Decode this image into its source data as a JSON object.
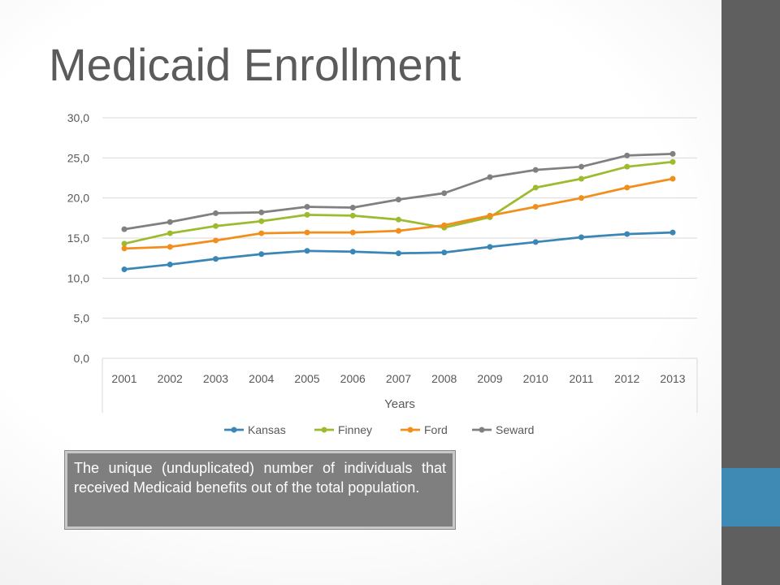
{
  "slide": {
    "title": "Medicaid Enrollment",
    "caption": "The unique (unduplicated) number of individuals that received Medicaid benefits out of the total population."
  },
  "colors": {
    "right_bar": "#5f5f5f",
    "right_accent": "#3f8ab5",
    "caption_bg": "#7f7f7f"
  },
  "chart_data": {
    "type": "line",
    "title": "",
    "xlabel": "Years",
    "ylabel": "",
    "ylim": [
      0,
      30
    ],
    "y_ticks": [
      "0,0",
      "5,0",
      "10,0",
      "15,0",
      "20,0",
      "25,0",
      "30,0"
    ],
    "y_tick_values": [
      0,
      5,
      10,
      15,
      20,
      25,
      30
    ],
    "grid": true,
    "legend_position": "bottom",
    "categories": [
      "2001",
      "2002",
      "2003",
      "2004",
      "2005",
      "2006",
      "2007",
      "2008",
      "2009",
      "2010",
      "2011",
      "2012",
      "2013"
    ],
    "series": [
      {
        "name": "Kansas",
        "color": "#3a87b7",
        "values": [
          11.1,
          11.7,
          12.4,
          13.0,
          13.4,
          13.3,
          13.1,
          13.2,
          13.9,
          14.5,
          15.1,
          15.5,
          15.7
        ]
      },
      {
        "name": "Finney",
        "color": "#9cbb2e",
        "values": [
          14.3,
          15.6,
          16.5,
          17.1,
          17.9,
          17.8,
          17.3,
          16.3,
          17.6,
          21.3,
          22.4,
          23.9,
          24.5
        ]
      },
      {
        "name": "Ford",
        "color": "#f28f1c",
        "values": [
          13.7,
          13.9,
          14.7,
          15.6,
          15.7,
          15.7,
          15.9,
          16.6,
          17.8,
          18.9,
          20.0,
          21.3,
          22.4
        ]
      },
      {
        "name": "Seward",
        "color": "#808080",
        "values": [
          16.1,
          17.0,
          18.1,
          18.2,
          18.9,
          18.8,
          19.8,
          20.6,
          22.6,
          23.5,
          23.9,
          25.3,
          25.5
        ]
      }
    ]
  }
}
